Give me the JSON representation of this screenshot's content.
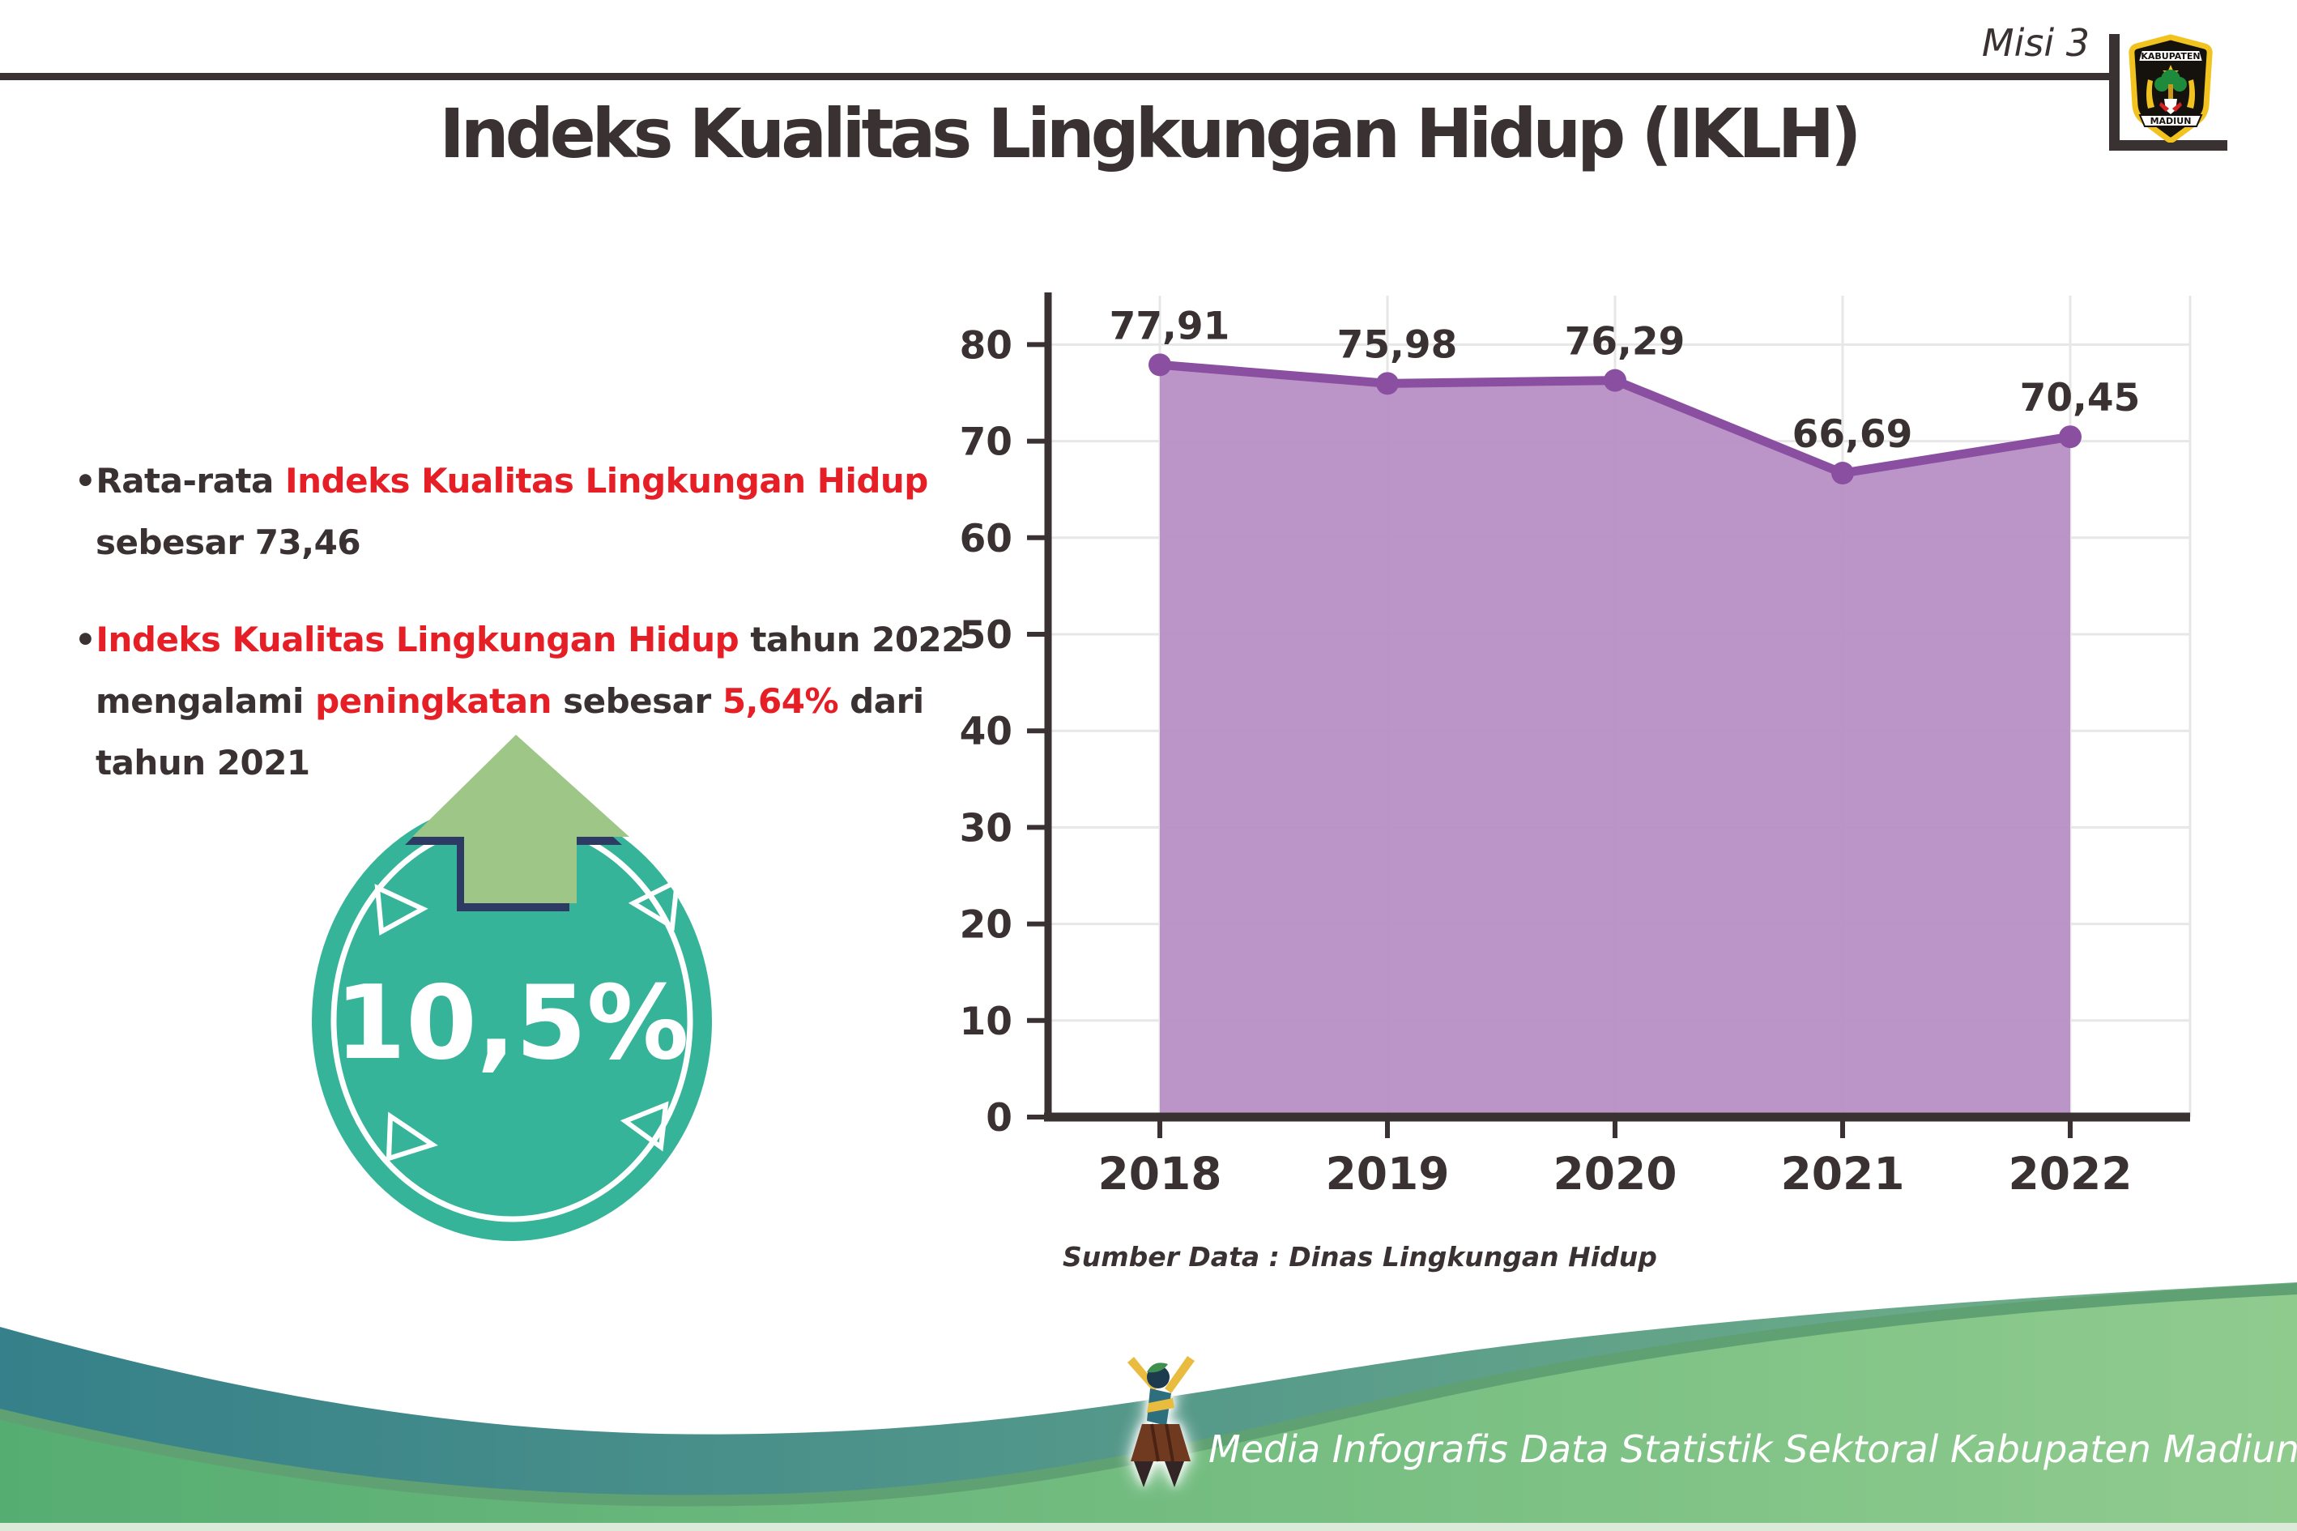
{
  "header": {
    "misi": "Misi 3",
    "title": "Indeks Kualitas Lingkungan Hidup (IKLH)",
    "logo_top": "KABUPATEN",
    "logo_bottom": "MADIUN"
  },
  "bullets": [
    {
      "lines": [
        [
          {
            "t": "•",
            "c": "dark"
          },
          {
            "t": "Rata-rata ",
            "c": "dark"
          },
          {
            "t": "Indeks Kualitas Lingkungan Hidup",
            "c": "red"
          }
        ],
        [
          {
            "t": "sebesar 73,46",
            "c": "dark"
          }
        ]
      ]
    },
    {
      "lines": [
        [
          {
            "t": "•",
            "c": "dark"
          },
          {
            "t": "Indeks Kualitas Lingkungan Hidup",
            "c": "red"
          },
          {
            "t": " tahun 2022",
            "c": "dark"
          }
        ],
        [
          {
            "t": "mengalami ",
            "c": "dark"
          },
          {
            "t": "peningkatan",
            "c": "red"
          },
          {
            "t": " sebesar ",
            "c": "dark"
          },
          {
            "t": "5,64%",
            "c": "red"
          },
          {
            "t": " dari",
            "c": "dark"
          }
        ],
        [
          {
            "t": "tahun 2021",
            "c": "dark"
          }
        ]
      ]
    }
  ],
  "badge": {
    "value": "10,5%"
  },
  "chart_data": {
    "type": "area",
    "x": [
      "2018",
      "2019",
      "2020",
      "2021",
      "2022"
    ],
    "values": [
      77.91,
      75.98,
      76.29,
      66.69,
      70.45
    ],
    "labels": [
      "77,91",
      "75,98",
      "76,29",
      "66,69",
      "70,45"
    ],
    "ylim": [
      0,
      85
    ],
    "yticks": [
      0,
      10,
      20,
      30,
      40,
      50,
      60,
      70,
      80
    ],
    "grid": true,
    "legend": "none",
    "source": "Sumber Data : Dinas Lingkungan Hidup"
  },
  "footer": {
    "text": "Media Infografis Data Statistik Sektoral Kabupaten Madiun |"
  },
  "colors": {
    "dark": "#3a3132",
    "red": "#e61e25",
    "teal_badge": "#36b49a",
    "arrow_green": "#9dc687",
    "arrow_outline": "#2d3a63",
    "chart_line": "#8a4fa0",
    "chart_fill": "#b78fc4",
    "grid": "#e7e7e7",
    "wave_teal_l": "#35808a",
    "wave_teal_r": "#74b189",
    "wave_green_l": "#56ad72",
    "wave_green_r": "#90cb8e",
    "wave_rim": "#5fa173",
    "bottom_strip": "#dcead9"
  }
}
